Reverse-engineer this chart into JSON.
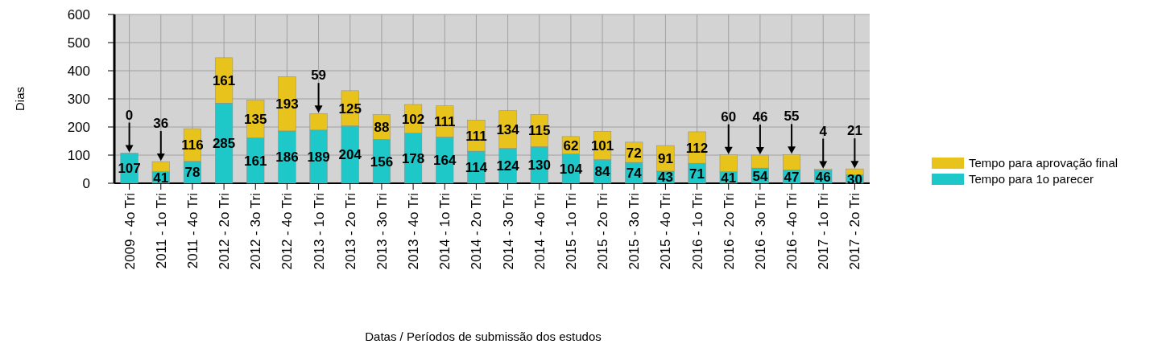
{
  "chart_data": {
    "type": "bar",
    "stacked": true,
    "xlabel": "Datas / Períodos de submissão dos estudos",
    "ylabel": "Dias",
    "categories": [
      "2009 - 4o Tri",
      "2011 - 1o Tri",
      "2011 - 4o Tri",
      "2012 - 2o Tri",
      "2012 - 3o Tri",
      "2012 - 4o Tri",
      "2013 - 1o Tri",
      "2013 - 2o Tri",
      "2013 - 3o Tri",
      "2013 - 4o Tri",
      "2014 - 1o Tri",
      "2014 - 2o Tri",
      "2014 - 3o Tri",
      "2014 - 4o Tri",
      "2015 - 1o Tri",
      "2015 - 2o Tri",
      "2015 - 3o Tri",
      "2015 - 4o Tri",
      "2016 - 1o Tri",
      "2016 - 2o Tri",
      "2016 - 3o Tri",
      "2016 - 4o Tri",
      "2017 - 1o Tri",
      "2017 - 2o Tri"
    ],
    "series": [
      {
        "name": "Tempo para 1o parecer",
        "color": "#1ec8c8",
        "values": [
          107,
          41,
          78,
          285,
          161,
          186,
          189,
          204,
          156,
          178,
          164,
          114,
          124,
          130,
          104,
          84,
          74,
          43,
          71,
          41,
          54,
          47,
          46,
          30
        ]
      },
      {
        "name": "Tempo para aprovação final",
        "color": "#e8c31c",
        "values": [
          0,
          36,
          116,
          161,
          135,
          193,
          59,
          125,
          88,
          102,
          111,
          111,
          134,
          115,
          62,
          101,
          72,
          91,
          112,
          60,
          46,
          55,
          4,
          21
        ]
      }
    ],
    "ylim": [
      0,
      600
    ],
    "yticks": [
      0,
      100,
      200,
      300,
      400,
      500,
      600
    ],
    "grid": true,
    "legend": "right",
    "data_labels": true
  }
}
